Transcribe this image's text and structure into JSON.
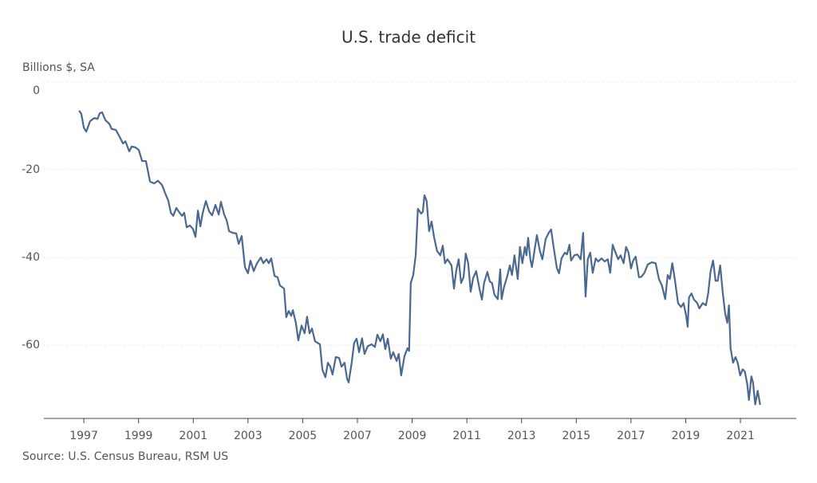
{
  "chart_data": {
    "type": "line",
    "title": "U.S. trade deficit",
    "y_label": "Billions $, SA",
    "source": "Source: U.S. Census Bureau, RSM US",
    "xlim": [
      1995.54,
      2023.04
    ],
    "ylim": [
      -76.7,
      0
    ],
    "xticks": [
      1997,
      1999,
      2001,
      2003,
      2005,
      2007,
      2009,
      2011,
      2013,
      2015,
      2017,
      2019,
      2021
    ],
    "yticks": [
      0,
      -20,
      -40,
      -60
    ],
    "grid": true,
    "x": [
      1996.83,
      1996.91,
      1997.0,
      1997.09,
      1997.23,
      1997.38,
      1997.5,
      1997.58,
      1997.67,
      1997.79,
      1997.93,
      1998.02,
      1998.17,
      1998.31,
      1998.43,
      1998.52,
      1998.66,
      1998.75,
      1998.89,
      1999.01,
      1999.13,
      1999.27,
      1999.42,
      1999.57,
      1999.71,
      1999.86,
      1999.97,
      2000.09,
      2000.18,
      2000.27,
      2000.38,
      2000.5,
      2000.59,
      2000.67,
      2000.76,
      2000.88,
      2000.99,
      2001.08,
      2001.17,
      2001.26,
      2001.34,
      2001.46,
      2001.58,
      2001.69,
      2001.81,
      2001.93,
      2002.01,
      2002.13,
      2002.22,
      2002.31,
      2002.45,
      2002.57,
      2002.66,
      2002.77,
      2002.89,
      2003.0,
      2003.09,
      2003.21,
      2003.33,
      2003.47,
      2003.56,
      2003.68,
      2003.76,
      2003.85,
      2003.97,
      2004.08,
      2004.17,
      2004.32,
      2004.4,
      2004.49,
      2004.58,
      2004.64,
      2004.75,
      2004.84,
      2004.96,
      2005.07,
      2005.16,
      2005.25,
      2005.34,
      2005.45,
      2005.63,
      2005.72,
      2005.83,
      2005.92,
      2006.01,
      2006.09,
      2006.21,
      2006.33,
      2006.42,
      2006.53,
      2006.62,
      2006.68,
      2006.79,
      2006.88,
      2006.97,
      2007.06,
      2007.17,
      2007.26,
      2007.38,
      2007.52,
      2007.64,
      2007.73,
      2007.84,
      2007.93,
      2008.02,
      2008.11,
      2008.22,
      2008.31,
      2008.43,
      2008.51,
      2008.6,
      2008.72,
      2008.83,
      2008.89,
      2008.95,
      2009.04,
      2009.13,
      2009.21,
      2009.33,
      2009.39,
      2009.45,
      2009.53,
      2009.62,
      2009.71,
      2009.8,
      2009.91,
      2010.03,
      2010.12,
      2010.2,
      2010.29,
      2010.44,
      2010.53,
      2010.61,
      2010.7,
      2010.79,
      2010.88,
      2010.96,
      2011.05,
      2011.14,
      2011.23,
      2011.34,
      2011.46,
      2011.55,
      2011.63,
      2011.75,
      2011.84,
      2011.92,
      2012.01,
      2012.13,
      2012.22,
      2012.27,
      2012.36,
      2012.48,
      2012.57,
      2012.65,
      2012.74,
      2012.86,
      2012.94,
      2013.03,
      2013.12,
      2013.18,
      2013.24,
      2013.32,
      2013.38,
      2013.47,
      2013.56,
      2013.67,
      2013.76,
      2013.88,
      2013.99,
      2014.08,
      2014.17,
      2014.29,
      2014.37,
      2014.46,
      2014.58,
      2014.66,
      2014.75,
      2014.81,
      2014.93,
      2015.04,
      2015.16,
      2015.25,
      2015.34,
      2015.42,
      2015.51,
      2015.6,
      2015.71,
      2015.8,
      2015.92,
      2016.04,
      2016.15,
      2016.24,
      2016.33,
      2016.41,
      2016.53,
      2016.62,
      2016.73,
      2016.82,
      2016.91,
      2017.0,
      2017.08,
      2017.17,
      2017.29,
      2017.38,
      2017.49,
      2017.61,
      2017.76,
      2017.9,
      2018.02,
      2018.13,
      2018.25,
      2018.34,
      2018.42,
      2018.51,
      2018.6,
      2018.72,
      2018.83,
      2018.92,
      2019.01,
      2019.07,
      2019.12,
      2019.21,
      2019.3,
      2019.42,
      2019.5,
      2019.62,
      2019.74,
      2019.82,
      2019.91,
      2020.0,
      2020.09,
      2020.17,
      2020.26,
      2020.35,
      2020.44,
      2020.52,
      2020.58,
      2020.64,
      2020.73,
      2020.82,
      2020.9,
      2020.99,
      2021.08,
      2021.16,
      2021.25,
      2021.31,
      2021.4,
      2021.46,
      2021.54,
      2021.63,
      2021.72
    ],
    "series": [
      {
        "color": "#4a6890",
        "values": [
          -6.5,
          -7.3,
          -10.4,
          -11.3,
          -8.9,
          -8.2,
          -8.4,
          -7.1,
          -6.9,
          -8.7,
          -9.5,
          -10.7,
          -10.9,
          -12.5,
          -14,
          -13.5,
          -15.8,
          -14.7,
          -14.9,
          -15.5,
          -18,
          -18,
          -22.7,
          -23.1,
          -22.5,
          -23.5,
          -25.3,
          -27.1,
          -29.8,
          -30.5,
          -28.7,
          -29.8,
          -30.5,
          -29.8,
          -33.1,
          -32.7,
          -33.5,
          -35.3,
          -29.3,
          -32.9,
          -30,
          -27.1,
          -29.5,
          -30.4,
          -28,
          -30.2,
          -27.3,
          -30.2,
          -31.5,
          -34,
          -34.4,
          -34.5,
          -36.9,
          -35.1,
          -42.2,
          -43.6,
          -40.7,
          -43.1,
          -41.3,
          -40,
          -41.3,
          -40.4,
          -41.3,
          -40.2,
          -44.2,
          -44.5,
          -46.4,
          -47.1,
          -53.6,
          -52.2,
          -53.3,
          -52,
          -54.9,
          -58.9,
          -55.5,
          -57.3,
          -53.5,
          -57.3,
          -56.2,
          -59.1,
          -59.8,
          -65.6,
          -67.3,
          -64,
          -64.9,
          -66.7,
          -62.7,
          -62.9,
          -64.9,
          -64,
          -67.6,
          -68.5,
          -64,
          -59.5,
          -58.5,
          -61.6,
          -58.4,
          -62,
          -60.2,
          -59.8,
          -60.4,
          -57.6,
          -59.1,
          -57.5,
          -60.9,
          -58.5,
          -63.1,
          -61.6,
          -63.6,
          -62,
          -66.9,
          -62.5,
          -60.7,
          -61.3,
          -45.8,
          -44,
          -39.5,
          -28.9,
          -30,
          -29.6,
          -25.8,
          -27.1,
          -34,
          -31.8,
          -35.3,
          -38.5,
          -39.5,
          -37.3,
          -41.3,
          -40.4,
          -41.8,
          -47.1,
          -43.1,
          -40.4,
          -45.8,
          -44.5,
          -39.1,
          -41.3,
          -47.8,
          -44.7,
          -43.1,
          -47.1,
          -49.6,
          -45.8,
          -43.3,
          -45.5,
          -45.8,
          -48.5,
          -49.5,
          -42.7,
          -49.5,
          -46.7,
          -44.2,
          -41.8,
          -44,
          -39.5,
          -44.9,
          -37.6,
          -41.3,
          -37.6,
          -39.5,
          -35.5,
          -40.4,
          -42.2,
          -38.5,
          -34.9,
          -38.5,
          -40.4,
          -35.8,
          -34.4,
          -33.6,
          -37.6,
          -42.4,
          -43.6,
          -40.2,
          -38.9,
          -39.3,
          -37.1,
          -40.7,
          -39.5,
          -39.3,
          -40.4,
          -34.4,
          -48.9,
          -40.4,
          -38.9,
          -43.5,
          -40.2,
          -40.9,
          -40.2,
          -40.9,
          -40.4,
          -43.5,
          -37.1,
          -38.5,
          -40.4,
          -39.5,
          -41.3,
          -37.6,
          -38.9,
          -42.5,
          -40.7,
          -39.8,
          -44.5,
          -44.4,
          -43.5,
          -41.6,
          -41.1,
          -41.3,
          -44.9,
          -46.4,
          -49.5,
          -44,
          -44.9,
          -41.3,
          -44.9,
          -50.4,
          -51.3,
          -50.4,
          -53.1,
          -55.8,
          -49.1,
          -48.2,
          -49.6,
          -50.4,
          -51.6,
          -50.4,
          -50.9,
          -48.2,
          -43.1,
          -40.7,
          -45.3,
          -45.3,
          -41.8,
          -47.8,
          -52.7,
          -54.9,
          -50.9,
          -60.7,
          -64,
          -62.7,
          -64,
          -66.9,
          -65.5,
          -66,
          -68.9,
          -72.5,
          -67.1,
          -68.5,
          -73.5,
          -70.4,
          -73.6
        ]
      }
    ]
  }
}
